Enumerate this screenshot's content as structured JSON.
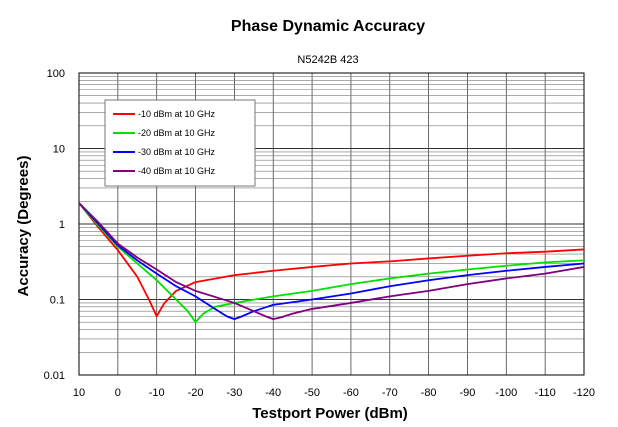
{
  "chart_data": {
    "type": "line",
    "title": "Phase Dynamic Accuracy",
    "subtitle": "N5242B 423",
    "xlabel": "Testport Power (dBm)",
    "ylabel": "Accuracy (Degrees)",
    "x_scale": "linear",
    "x_reversed": true,
    "xlim": [
      10,
      -120
    ],
    "x_ticks": [
      10,
      0,
      -10,
      -20,
      -30,
      -40,
      -50,
      -60,
      -70,
      -80,
      -90,
      -100,
      -110,
      -120
    ],
    "x_tick_labels": [
      "10",
      "0",
      "-10",
      "-20",
      "-30",
      "-40",
      "-50",
      "-60",
      "-70",
      "-80",
      "-90",
      "-100",
      "-110",
      "-120"
    ],
    "y_scale": "log",
    "ylim": [
      0.01,
      100
    ],
    "y_ticks": [
      0.01,
      0.1,
      1,
      10,
      100
    ],
    "y_tick_labels": [
      "0.01",
      "0.1",
      "1",
      "10",
      "100"
    ],
    "grid": true,
    "legend_position": "top-left",
    "series": [
      {
        "name": "-10 dBm at 10 GHz",
        "color": "#ff0000",
        "x": [
          10,
          5,
          0,
          -5,
          -8,
          -10,
          -12,
          -15,
          -20,
          -30,
          -40,
          -50,
          -60,
          -70,
          -80,
          -90,
          -100,
          -110,
          -120
        ],
        "y": [
          1.9,
          0.9,
          0.45,
          0.2,
          0.1,
          0.06,
          0.09,
          0.13,
          0.17,
          0.21,
          0.24,
          0.27,
          0.3,
          0.32,
          0.35,
          0.38,
          0.41,
          0.43,
          0.46
        ]
      },
      {
        "name": "-20 dBm at 10 GHz",
        "color": "#00e000",
        "x": [
          10,
          5,
          0,
          -5,
          -10,
          -15,
          -18,
          -20,
          -22,
          -25,
          -30,
          -40,
          -50,
          -60,
          -70,
          -80,
          -90,
          -100,
          -110,
          -120
        ],
        "y": [
          1.9,
          0.95,
          0.5,
          0.3,
          0.18,
          0.1,
          0.07,
          0.05,
          0.065,
          0.08,
          0.09,
          0.11,
          0.13,
          0.16,
          0.19,
          0.22,
          0.25,
          0.28,
          0.31,
          0.33
        ]
      },
      {
        "name": "-30 dBm at 10 GHz",
        "color": "#0000ff",
        "x": [
          10,
          5,
          0,
          -5,
          -10,
          -15,
          -20,
          -25,
          -28,
          -30,
          -32,
          -35,
          -40,
          -50,
          -60,
          -70,
          -80,
          -90,
          -100,
          -110,
          -120
        ],
        "y": [
          1.9,
          1.0,
          0.52,
          0.33,
          0.22,
          0.15,
          0.11,
          0.075,
          0.06,
          0.055,
          0.06,
          0.07,
          0.085,
          0.1,
          0.12,
          0.15,
          0.18,
          0.21,
          0.24,
          0.27,
          0.3
        ]
      },
      {
        "name": "-40 dBm at 10 GHz",
        "color": "#800080",
        "x": [
          10,
          5,
          0,
          -5,
          -10,
          -15,
          -20,
          -30,
          -35,
          -38,
          -40,
          -42,
          -45,
          -50,
          -60,
          -70,
          -80,
          -90,
          -100,
          -110,
          -120
        ],
        "y": [
          1.9,
          1.05,
          0.55,
          0.36,
          0.25,
          0.17,
          0.13,
          0.09,
          0.07,
          0.06,
          0.055,
          0.058,
          0.065,
          0.075,
          0.09,
          0.11,
          0.13,
          0.16,
          0.19,
          0.22,
          0.27
        ]
      }
    ]
  }
}
